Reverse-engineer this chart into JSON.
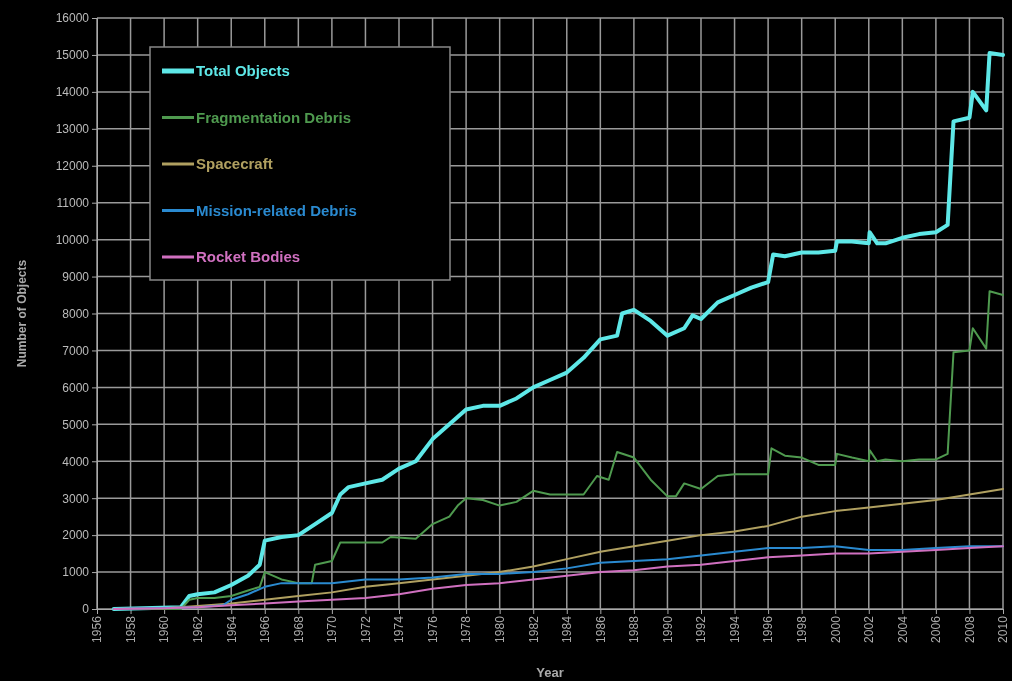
{
  "chart_data": {
    "type": "line",
    "xlabel": "Year",
    "ylabel": "Number of Objects",
    "xlim": [
      1956,
      2010
    ],
    "xticks": [
      1956,
      1958,
      1960,
      1962,
      1964,
      1966,
      1968,
      1970,
      1972,
      1974,
      1976,
      1978,
      1980,
      1982,
      1984,
      1986,
      1988,
      1990,
      1992,
      1994,
      1996,
      1998,
      2000,
      2002,
      2004,
      2006,
      2008,
      2010
    ],
    "ylim": [
      0,
      16000
    ],
    "yticks": [
      0,
      1000,
      2000,
      3000,
      4000,
      5000,
      6000,
      7000,
      8000,
      9000,
      10000,
      11000,
      12000,
      13000,
      14000,
      15000,
      16000
    ],
    "grid": true,
    "legend": "top left",
    "line_style": "solid",
    "marker": "none",
    "series": [
      {
        "name": "Total Objects",
        "color": "#5ee8e8",
        "x": [
          1957,
          1961,
          1961.5,
          1962,
          1963,
          1964,
          1965,
          1965.7,
          1966,
          1967,
          1968,
          1969,
          1970,
          1970.5,
          1971,
          1972,
          1973,
          1974,
          1975,
          1976,
          1977,
          1978,
          1979,
          1980,
          1981,
          1982,
          1983,
          1984,
          1985,
          1986,
          1987,
          1987.3,
          1988,
          1989,
          1990,
          1991,
          1991.5,
          1992,
          1993,
          1994,
          1995,
          1996,
          1996.3,
          1997,
          1998,
          1999,
          2000,
          2000.1,
          2001,
          2002,
          2002.05,
          2002.5,
          2003,
          2004,
          2005,
          2006,
          2006.7,
          2007.05,
          2008,
          2008.2,
          2009,
          2009.2,
          2010
        ],
        "values": [
          0,
          50,
          350,
          400,
          450,
          650,
          900,
          1200,
          1850,
          1950,
          2000,
          2300,
          2600,
          3100,
          3300,
          3400,
          3500,
          3800,
          4000,
          4600,
          5000,
          5400,
          5500,
          5500,
          5700,
          6000,
          6200,
          6400,
          6800,
          7300,
          7400,
          8000,
          8100,
          7800,
          7400,
          7600,
          7950,
          7850,
          8300,
          8500,
          8700,
          8850,
          9600,
          9550,
          9650,
          9650,
          9700,
          9950,
          9950,
          9900,
          10200,
          9900,
          9900,
          10050,
          10150,
          10200,
          10400,
          13200,
          13300,
          14000,
          13500,
          15050,
          15000
        ]
      },
      {
        "name": "Fragmentation Debris",
        "color": "#4f9a4f",
        "x": [
          1957,
          1961,
          1961.5,
          1962,
          1963,
          1964,
          1965,
          1965.7,
          1966,
          1967,
          1968,
          1968.8,
          1969,
          1970,
          1970.5,
          1972,
          1973,
          1973.5,
          1975,
          1976,
          1977,
          1977.5,
          1978,
          1979,
          1980,
          1981,
          1982,
          1983,
          1984,
          1985,
          1985.8,
          1986.5,
          1987,
          1988,
          1989,
          1990,
          1990.5,
          1991,
          1992,
          1993,
          1994,
          1995,
          1996,
          1996.2,
          1997,
          1998,
          1999,
          2000,
          2000.1,
          2001,
          2002,
          2002.05,
          2002.5,
          2003,
          2004,
          2005,
          2006,
          2006.7,
          2007.05,
          2008,
          2008.2,
          2009,
          2009.2,
          2010
        ],
        "values": [
          0,
          0,
          250,
          300,
          300,
          350,
          500,
          600,
          1000,
          800,
          700,
          700,
          1200,
          1300,
          1800,
          1800,
          1800,
          1950,
          1900,
          2300,
          2500,
          2800,
          3000,
          2950,
          2800,
          2900,
          3200,
          3100,
          3100,
          3100,
          3600,
          3500,
          4250,
          4100,
          3500,
          3050,
          3050,
          3400,
          3250,
          3600,
          3650,
          3650,
          3650,
          4350,
          4150,
          4100,
          3900,
          3900,
          4200,
          4100,
          4000,
          4300,
          4000,
          4050,
          4000,
          4050,
          4050,
          4200,
          6950,
          7000,
          7600,
          7050,
          8600,
          8500
        ]
      },
      {
        "name": "Spacecraft",
        "color": "#b0a060",
        "x": [
          1957,
          1960,
          1962,
          1964,
          1966,
          1968,
          1970,
          1972,
          1974,
          1976,
          1978,
          1980,
          1982,
          1984,
          1986,
          1988,
          1990,
          1992,
          1994,
          1996,
          1998,
          2000,
          2002,
          2004,
          2006,
          2008,
          2010
        ],
        "values": [
          0,
          20,
          80,
          150,
          250,
          350,
          450,
          600,
          700,
          800,
          900,
          1000,
          1150,
          1350,
          1550,
          1700,
          1850,
          2000,
          2100,
          2250,
          2500,
          2650,
          2750,
          2850,
          2950,
          3100,
          3250
        ]
      },
      {
        "name": "Mission-related Debris",
        "color": "#2a8ad0",
        "x": [
          1957,
          1962,
          1963.5,
          1964,
          1965,
          1966,
          1967,
          1968,
          1970,
          1972,
          1974,
          1976,
          1978,
          1980,
          1982,
          1984,
          1986,
          1988,
          1990,
          1992,
          1994,
          1996,
          1998,
          2000,
          2002,
          2004,
          2006,
          2008,
          2010
        ],
        "values": [
          0,
          50,
          100,
          250,
          400,
          600,
          700,
          700,
          700,
          800,
          800,
          850,
          950,
          950,
          1000,
          1100,
          1250,
          1300,
          1350,
          1450,
          1550,
          1650,
          1650,
          1700,
          1600,
          1600,
          1650,
          1700,
          1700
        ]
      },
      {
        "name": "Rocket Bodies",
        "color": "#d070c0",
        "x": [
          1957,
          1960,
          1962,
          1964,
          1966,
          1968,
          1970,
          1972,
          1974,
          1976,
          1978,
          1980,
          1982,
          1984,
          1986,
          1988,
          1990,
          1992,
          1994,
          1996,
          1998,
          2000,
          2002,
          2004,
          2006,
          2008,
          2010
        ],
        "values": [
          0,
          20,
          50,
          100,
          150,
          200,
          250,
          300,
          400,
          550,
          650,
          700,
          800,
          900,
          1000,
          1050,
          1150,
          1200,
          1300,
          1400,
          1450,
          1500,
          1500,
          1550,
          1600,
          1650,
          1700
        ]
      }
    ]
  }
}
